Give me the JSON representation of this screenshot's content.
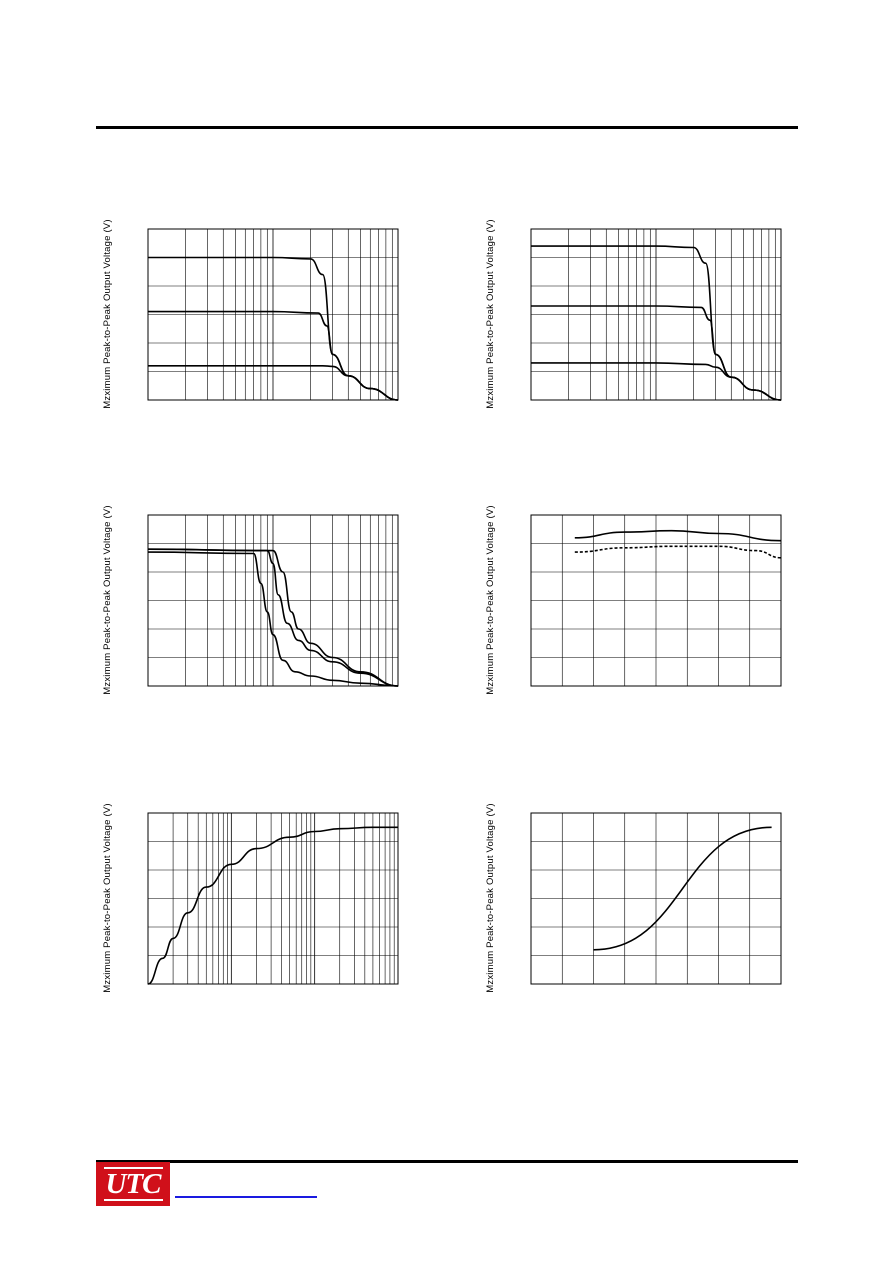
{
  "page": {
    "logo_text": "UTC",
    "colors": {
      "rule": "#000000",
      "logo_bg": "#d0101a",
      "link": "#1a1ae0"
    }
  },
  "chart_data": [
    {
      "type": "line",
      "ylabel": "Mzximum Peak-to-Peak Output Voltage (V)",
      "x_scale": "log",
      "xlim": [
        1,
        100
      ],
      "ylim": [
        0,
        6
      ],
      "grid": true,
      "series": [
        {
          "x": [
            1,
            10,
            20,
            25,
            30,
            40,
            60,
            100
          ],
          "y": [
            5.0,
            5.0,
            4.95,
            4.4,
            1.6,
            0.85,
            0.4,
            0.0
          ]
        },
        {
          "x": [
            1,
            10,
            23,
            27,
            30,
            40,
            60,
            100
          ],
          "y": [
            3.1,
            3.1,
            3.05,
            2.6,
            1.6,
            0.85,
            0.4,
            0.0
          ]
        },
        {
          "x": [
            1,
            10,
            25,
            30,
            40,
            60,
            100
          ],
          "y": [
            1.2,
            1.2,
            1.2,
            1.18,
            0.85,
            0.4,
            0.0
          ]
        }
      ]
    },
    {
      "type": "line",
      "ylabel": "Mzximum Peak-to-Peak Output Voltage (V)",
      "x_scale": "log",
      "xlim": [
        1,
        100
      ],
      "ylim": [
        0,
        6
      ],
      "grid": true,
      "series": [
        {
          "x": [
            1,
            10,
            20,
            25,
            30,
            40,
            60,
            100
          ],
          "y": [
            5.4,
            5.4,
            5.35,
            4.8,
            1.6,
            0.8,
            0.35,
            0.0
          ]
        },
        {
          "x": [
            1,
            10,
            23,
            27,
            30,
            40,
            60,
            100
          ],
          "y": [
            3.3,
            3.3,
            3.25,
            2.8,
            1.6,
            0.8,
            0.35,
            0.0
          ]
        },
        {
          "x": [
            1,
            10,
            25,
            30,
            40,
            60,
            100
          ],
          "y": [
            1.3,
            1.3,
            1.25,
            1.15,
            0.8,
            0.35,
            0.0
          ]
        }
      ]
    },
    {
      "type": "line",
      "ylabel": "Mzximum Peak-to-Peak Output Voltage (V)",
      "x_scale": "log",
      "xlim": [
        1,
        100
      ],
      "ylim": [
        0,
        6
      ],
      "grid": true,
      "series": [
        {
          "x": [
            1,
            9,
            10,
            11,
            13,
            16,
            20,
            30,
            50,
            100
          ],
          "y": [
            4.8,
            4.75,
            4.3,
            3.2,
            2.2,
            1.6,
            1.25,
            0.85,
            0.45,
            0.0
          ]
        },
        {
          "x": [
            1,
            10,
            12,
            14,
            16,
            20,
            30,
            50,
            100
          ],
          "y": [
            4.8,
            4.75,
            4.0,
            2.6,
            2.0,
            1.5,
            1.0,
            0.5,
            0.0
          ]
        },
        {
          "x": [
            1,
            7,
            8,
            9,
            10,
            12,
            15,
            20,
            30,
            50,
            100
          ],
          "y": [
            4.7,
            4.65,
            3.6,
            2.6,
            1.8,
            0.9,
            0.5,
            0.35,
            0.2,
            0.1,
            0.0
          ]
        }
      ]
    },
    {
      "type": "line",
      "ylabel": "Mzximum Peak-to-Peak Output Voltage (V)",
      "x_scale": "linear",
      "xlim": [
        0,
        8
      ],
      "ylim": [
        0,
        6
      ],
      "grid": true,
      "series": [
        {
          "style": "solid",
          "x": [
            1.4,
            3.0,
            4.5,
            6.0,
            8.0
          ],
          "y": [
            5.2,
            5.4,
            5.45,
            5.35,
            5.1
          ]
        },
        {
          "style": "dashed",
          "x": [
            1.4,
            3.0,
            4.5,
            6.0,
            7.2,
            8.0
          ],
          "y": [
            4.7,
            4.85,
            4.9,
            4.9,
            4.75,
            4.5
          ]
        }
      ]
    },
    {
      "type": "line",
      "ylabel": "Mzximum Peak-to-Peak Output Voltage (V)",
      "x_scale": "log",
      "xlim": [
        1,
        1000
      ],
      "ylim": [
        0,
        6
      ],
      "grid": true,
      "series": [
        {
          "x": [
            1,
            1.5,
            2,
            3,
            5,
            10,
            20,
            50,
            100,
            200,
            500,
            1000
          ],
          "y": [
            0.0,
            0.9,
            1.6,
            2.5,
            3.4,
            4.2,
            4.75,
            5.15,
            5.35,
            5.45,
            5.5,
            5.5
          ]
        }
      ]
    },
    {
      "type": "line",
      "ylabel": "Mzximum Peak-to-Peak Output Voltage (V)",
      "x_scale": "linear",
      "xlim": [
        0,
        8
      ],
      "ylim": [
        0,
        6
      ],
      "grid": true,
      "series": [
        {
          "x": [
            2,
            7.7
          ],
          "y": [
            1.2,
            5.5
          ]
        }
      ]
    }
  ]
}
